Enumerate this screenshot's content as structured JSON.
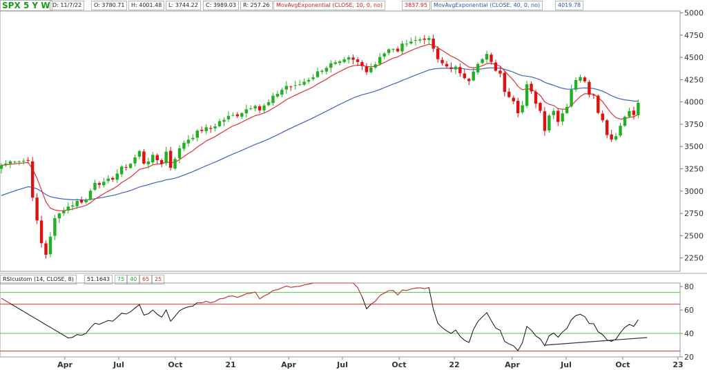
{
  "header": {
    "symbol": "SPX",
    "period": "5 Y W",
    "date": "D: 11/7/22",
    "open": "O: 3780.71",
    "high": "H: 4001.48",
    "low": "L: 3744.22",
    "close": "C: 3989.03",
    "range": "R: 257.26",
    "ma1_label": "MovAvgExponential (CLOSE, 10, 0, no)",
    "ma1_value": "3837.95",
    "ma2_label": "MovAvgExponential (CLOSE, 40, 0, no)",
    "ma2_value": "4019.78"
  },
  "rsi_header": {
    "label": "RSIcustom (14, CLOSE, 8)",
    "value": "51.1643",
    "levels": [
      "75",
      "40",
      "65",
      "25"
    ]
  },
  "colors": {
    "up": "#22b022",
    "down": "#dd1111",
    "ema10": "#e03030",
    "ema40": "#4060c0",
    "rsi": "#111111",
    "level_green": "#44cc44",
    "level_red": "#dd3333"
  },
  "chart_data": [
    {
      "type": "candlestick",
      "x_tick_labels": [
        "Apr",
        "Jul",
        "Oct",
        "21",
        "Apr",
        "Jul",
        "Oct",
        "22",
        "Apr",
        "Jul",
        "Oct",
        "23"
      ],
      "y_ticks": [
        2250,
        2500,
        2750,
        3000,
        3250,
        3500,
        3750,
        4000,
        4250,
        4500,
        4750,
        5000
      ],
      "ylim": [
        2100,
        5020
      ],
      "anchors": [
        [
          0,
          3290
        ],
        [
          3,
          3350
        ],
        [
          6,
          3340
        ],
        [
          7,
          2950
        ],
        [
          8,
          2650
        ],
        [
          9,
          2410
        ],
        [
          10,
          2290
        ],
        [
          11,
          2500
        ],
        [
          12,
          2680
        ],
        [
          14,
          2800
        ],
        [
          17,
          2880
        ],
        [
          19,
          2900
        ],
        [
          21,
          3110
        ],
        [
          23,
          3080
        ],
        [
          25,
          3150
        ],
        [
          27,
          3250
        ],
        [
          29,
          3310
        ],
        [
          31,
          3440
        ],
        [
          32,
          3320
        ],
        [
          34,
          3380
        ],
        [
          36,
          3320
        ],
        [
          37,
          3440
        ],
        [
          38,
          3270
        ],
        [
          39,
          3380
        ],
        [
          41,
          3550
        ],
        [
          43,
          3620
        ],
        [
          45,
          3690
        ],
        [
          47,
          3700
        ],
        [
          49,
          3780
        ],
        [
          51,
          3830
        ],
        [
          53,
          3860
        ],
        [
          55,
          3920
        ],
        [
          57,
          3980
        ],
        [
          58,
          3910
        ],
        [
          60,
          3990
        ],
        [
          62,
          4100
        ],
        [
          64,
          4180
        ],
        [
          66,
          4170
        ],
        [
          68,
          4230
        ],
        [
          70,
          4290
        ],
        [
          72,
          4370
        ],
        [
          74,
          4420
        ],
        [
          76,
          4430
        ],
        [
          78,
          4480
        ],
        [
          80,
          4440
        ],
        [
          82,
          4360
        ],
        [
          84,
          4430
        ],
        [
          85,
          4520
        ],
        [
          87,
          4580
        ],
        [
          89,
          4580
        ],
        [
          91,
          4680
        ],
        [
          93,
          4690
        ],
        [
          95,
          4720
        ],
        [
          96,
          4690
        ],
        [
          97,
          4600
        ],
        [
          98,
          4460
        ],
        [
          100,
          4400
        ],
        [
          102,
          4380
        ],
        [
          103,
          4300
        ],
        [
          105,
          4260
        ],
        [
          106,
          4360
        ],
        [
          108,
          4470
        ],
        [
          109,
          4530
        ],
        [
          110,
          4430
        ],
        [
          112,
          4300
        ],
        [
          113,
          4130
        ],
        [
          115,
          4030
        ],
        [
          116,
          3900
        ],
        [
          117,
          3960
        ],
        [
          118,
          4180
        ],
        [
          119,
          4100
        ],
        [
          121,
          3900
        ],
        [
          122,
          3700
        ],
        [
          123,
          3860
        ],
        [
          124,
          3900
        ],
        [
          125,
          3800
        ],
        [
          127,
          3960
        ],
        [
          128,
          4150
        ],
        [
          129,
          4230
        ],
        [
          130,
          4300
        ],
        [
          131,
          4250
        ],
        [
          132,
          4110
        ],
        [
          133,
          4070
        ],
        [
          134,
          3900
        ],
        [
          135,
          3800
        ],
        [
          136,
          3650
        ],
        [
          137,
          3580
        ],
        [
          138,
          3620
        ],
        [
          139,
          3760
        ],
        [
          140,
          3820
        ],
        [
          141,
          3900
        ],
        [
          142,
          3840
        ],
        [
          143,
          3990
        ]
      ],
      "series": [
        {
          "name": "MovAvgExponential (CLOSE, 10, 0, no)",
          "value": 3837.95
        },
        {
          "name": "MovAvgExponential (CLOSE, 40, 0, no)",
          "value": 4019.78
        }
      ]
    },
    {
      "type": "line",
      "name": "RSIcustom (14, CLOSE, 8)",
      "y_ticks": [
        20,
        40,
        60,
        80
      ],
      "ylim": [
        20,
        83
      ],
      "levels": [
        75,
        65,
        40,
        25
      ],
      "last_value": 51.1643
    }
  ]
}
